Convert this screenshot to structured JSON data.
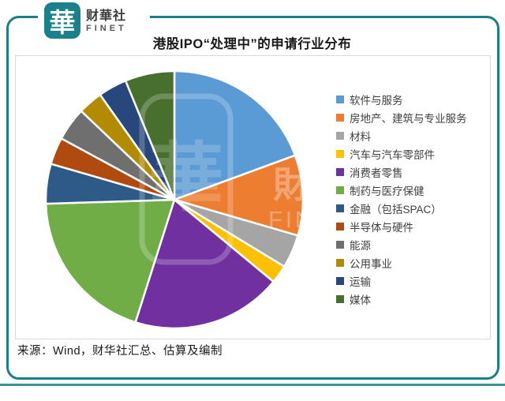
{
  "brand": {
    "logo_glyph": "華",
    "name_cn": "财華社",
    "name_en": "FINET"
  },
  "chart_title": "港股IPO“处理中”的申请行业分布",
  "source_note": "来源：Wind，财华社汇总、估算及编制",
  "watermark": {
    "glyph": "華",
    "text_cn": "財華",
    "text_en": "FINET"
  },
  "colors": {
    "frame_teal": "#1A7F88",
    "panel_border": "#D9D9D9",
    "title_text": "#1A1A1A"
  },
  "chart_data": {
    "type": "pie",
    "title": "港股IPO“处理中”的申请行业分布",
    "legend_position": "right",
    "value_unit": "percent_of_total_estimated_from_slice_angles",
    "start_angle_deg": 0,
    "direction": "clockwise_from_top",
    "series": [
      {
        "label": "软件与服务",
        "value": 19.4,
        "color": "#5B9BD5"
      },
      {
        "label": "房地产、建筑与专业服务",
        "value": 10.1,
        "color": "#ED7D31"
      },
      {
        "label": "材料",
        "value": 4.2,
        "color": "#A5A5A5"
      },
      {
        "label": "汽车与汽车零部件",
        "value": 2.3,
        "color": "#FFC000"
      },
      {
        "label": "消费者零售",
        "value": 18.9,
        "color": "#7030A0"
      },
      {
        "label": "制药与医疗保健",
        "value": 19.6,
        "color": "#70AD47"
      },
      {
        "label": "金融（包括SPAC）",
        "value": 5.0,
        "color": "#2D5A87"
      },
      {
        "label": "半导体与硬件",
        "value": 3.4,
        "color": "#B04A0E"
      },
      {
        "label": "能源",
        "value": 4.2,
        "color": "#6F6F6F"
      },
      {
        "label": "公用事业",
        "value": 3.1,
        "color": "#B38B00"
      },
      {
        "label": "运输",
        "value": 3.6,
        "color": "#28477C"
      },
      {
        "label": "媒体",
        "value": 6.2,
        "color": "#486F2E"
      }
    ]
  }
}
